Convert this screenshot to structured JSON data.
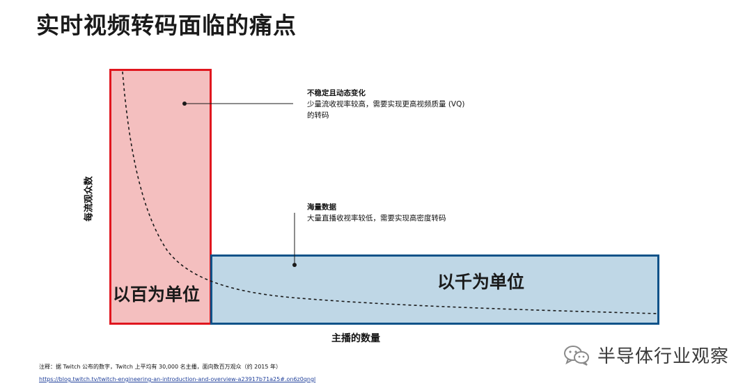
{
  "title": "实时视频转码面临的痛点",
  "axes": {
    "y_label": "每流观众数",
    "x_label": "主播的数量"
  },
  "regions": [
    {
      "label": "以百为单位",
      "fill": "#f4bfbf",
      "border": "#e0161e"
    },
    {
      "label": "以千为单位",
      "fill": "#bfd7e6",
      "border": "#0d5289"
    }
  ],
  "annotations": [
    {
      "heading": "不稳定且动态变化",
      "lines": [
        "少量流收视率较高，需要实现更高视频质量 (VQ)",
        "的转码"
      ]
    },
    {
      "heading": "海量数据",
      "lines": [
        "大量直播收视率较低，需要实现高密度转码"
      ]
    }
  ],
  "footnote": "注释：据 Twitch 公布的数字，Twitch 上平均有 30,000 名主播，面向数百万观众（约 2015 年）",
  "source_url": "https://blog.twitch.tv/twitch-engineering-an-introduction-and-overview-a23917b71a25#.on6z0qngl",
  "watermark": {
    "text": "半导体行业观察",
    "icon": "wechat-icon"
  }
}
